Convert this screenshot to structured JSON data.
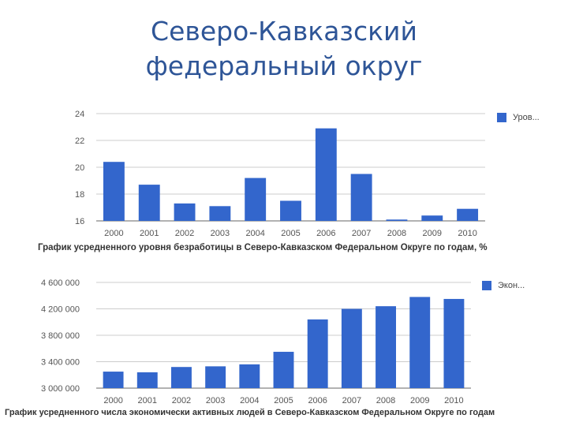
{
  "slide": {
    "title_line1": "Северо-Кавказский",
    "title_line2": "федеральный округ"
  },
  "chart_data": [
    {
      "type": "bar",
      "title": "График усредненного уровня безработицы в Северо-Кавказском Федеральном Округе по годам, %",
      "categories": [
        "2000",
        "2001",
        "2002",
        "2003",
        "2004",
        "2005",
        "2006",
        "2007",
        "2008",
        "2009",
        "2010"
      ],
      "series": [
        {
          "name": "Уров...",
          "values": [
            20.4,
            18.7,
            17.3,
            17.1,
            19.2,
            17.5,
            22.9,
            19.5,
            16.1,
            16.4,
            16.9
          ]
        }
      ],
      "ylim": [
        16,
        24
      ],
      "yticks": [
        "24",
        "22",
        "20",
        "18",
        "16"
      ],
      "ytick_values": [
        24,
        22,
        20,
        18,
        16
      ],
      "grid": true,
      "legend": "right",
      "color": "#3366cc"
    },
    {
      "type": "bar",
      "title": "График усредненного числа экономически активных людей в Северо-Кавказском Федеральном Округе по годам",
      "categories": [
        "2000",
        "2001",
        "2002",
        "2003",
        "2004",
        "2005",
        "2006",
        "2007",
        "2008",
        "2009",
        "2010"
      ],
      "series": [
        {
          "name": "Экон...",
          "values": [
            3250000,
            3240000,
            3320000,
            3330000,
            3360000,
            3550000,
            4040000,
            4200000,
            4240000,
            4380000,
            4350000
          ]
        }
      ],
      "ylim": [
        3000000,
        4600000
      ],
      "yticks": [
        "4 600 000",
        "4 200 000",
        "3 800 000",
        "3 400 000",
        "3 000 000"
      ],
      "ytick_values": [
        4600000,
        4200000,
        3800000,
        3400000,
        3000000
      ],
      "grid": true,
      "legend": "right",
      "color": "#3366cc"
    }
  ]
}
